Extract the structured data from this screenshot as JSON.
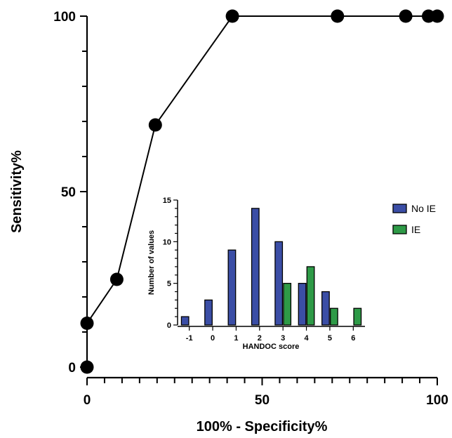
{
  "chart_data": [
    {
      "type": "line",
      "xlabel": "100% - Specificity%",
      "ylabel": "Sensitivity%",
      "xlim": [
        0,
        100
      ],
      "ylim": [
        0,
        100
      ],
      "xticks": [
        0,
        50,
        100
      ],
      "yticks": [
        0,
        50,
        100
      ],
      "x_minor_step": 5,
      "y_minor_step": 10,
      "grid": false,
      "series": [
        {
          "x": [
            0,
            0,
            8.5,
            19.5,
            41.5,
            71.5,
            91,
            97.5,
            100
          ],
          "y": [
            0,
            12.5,
            25,
            69,
            100,
            100,
            100,
            100,
            100
          ]
        }
      ]
    },
    {
      "type": "bar",
      "xlabel": "HANDOC score",
      "ylabel": "Number of values",
      "categories": [
        "-1",
        "0",
        "1",
        "2",
        "3",
        "4",
        "5",
        "6"
      ],
      "ylim": [
        0,
        15
      ],
      "yticks": [
        0,
        5,
        10,
        15
      ],
      "legend_position": "right",
      "colors": {
        "No IE": "#3b4ea6",
        "IE": "#2e9a47"
      },
      "series": [
        {
          "name": "No IE",
          "values": [
            1,
            3,
            9,
            14,
            10,
            5,
            4,
            0
          ]
        },
        {
          "name": "IE",
          "values": [
            0,
            0,
            0,
            0,
            5,
            7,
            2,
            2
          ]
        }
      ]
    }
  ]
}
